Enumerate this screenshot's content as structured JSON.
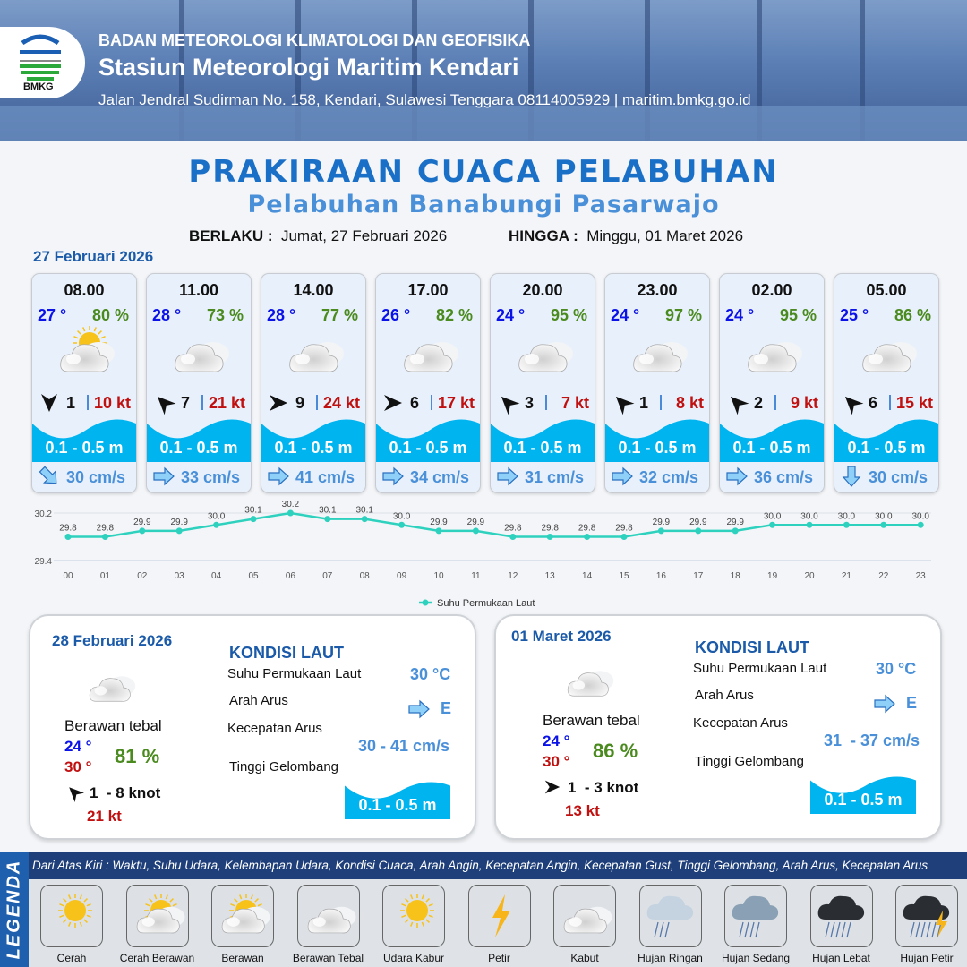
{
  "header": {
    "org": "BADAN METEOROLOGI KLIMATOLOGI DAN GEOFISIKA",
    "station": "Stasiun Meteorologi Maritim Kendari",
    "address": "Jalan Jendral Sudirman No. 158, Kendari, Sulawesi Tenggara  08114005929 | maritim.bmkg.go.id",
    "logo_text": "BMKG"
  },
  "title": "PRAKIRAAN CUACA PELABUHAN",
  "subtitle": "Pelabuhan Banabungi Pasarwajo",
  "validity": {
    "from_label": "BERLAKU :",
    "from": "Jumat, 27 Februari 2026",
    "to_label": "HINGGA :",
    "to": "Minggu, 01 Maret 2026"
  },
  "day1": {
    "date": "27 Februari 2026",
    "cards": [
      {
        "time": "08.00",
        "temp": "27 °",
        "hum": "80 %",
        "weather": "cerah-berawan",
        "wind_dir_deg": 180,
        "wind": "1",
        "gust": "10 kt",
        "wave": "0.1 - 0.5 m",
        "current_dir_deg": 135,
        "current": "30 cm/s"
      },
      {
        "time": "11.00",
        "temp": "28 °",
        "hum": "73 %",
        "weather": "berawan-tebal",
        "wind_dir_deg": 315,
        "wind": "7",
        "gust": "21 kt",
        "wave": "0.1 - 0.5 m",
        "current_dir_deg": 90,
        "current": "33 cm/s"
      },
      {
        "time": "14.00",
        "temp": "28 °",
        "hum": "77 %",
        "weather": "berawan-tebal",
        "wind_dir_deg": 90,
        "wind": "9",
        "gust": "24 kt",
        "wave": "0.1 - 0.5 m",
        "current_dir_deg": 90,
        "current": "41 cm/s"
      },
      {
        "time": "17.00",
        "temp": "26 °",
        "hum": "82 %",
        "weather": "berawan-tebal",
        "wind_dir_deg": 90,
        "wind": "6",
        "gust": "17 kt",
        "wave": "0.1 - 0.5 m",
        "current_dir_deg": 90,
        "current": "34 cm/s"
      },
      {
        "time": "20.00",
        "temp": "24 °",
        "hum": "95 %",
        "weather": "berawan-tebal",
        "wind_dir_deg": 315,
        "wind": "3",
        "gust": "7 kt",
        "wave": "0.1 - 0.5 m",
        "current_dir_deg": 90,
        "current": "31 cm/s"
      },
      {
        "time": "23.00",
        "temp": "24 °",
        "hum": "97 %",
        "weather": "berawan-tebal",
        "wind_dir_deg": 315,
        "wind": "1",
        "gust": "8 kt",
        "wave": "0.1 - 0.5 m",
        "current_dir_deg": 90,
        "current": "32 cm/s"
      },
      {
        "time": "02.00",
        "temp": "24 °",
        "hum": "95 %",
        "weather": "berawan-tebal",
        "wind_dir_deg": 315,
        "wind": "2",
        "gust": "9 kt",
        "wave": "0.1 - 0.5 m",
        "current_dir_deg": 90,
        "current": "36 cm/s"
      },
      {
        "time": "05.00",
        "temp": "25 °",
        "hum": "86 %",
        "weather": "berawan-tebal",
        "wind_dir_deg": 315,
        "wind": "6",
        "gust": "15 kt",
        "wave": "0.1 - 0.5 m",
        "current_dir_deg": 180,
        "current": "30 cm/s"
      }
    ]
  },
  "chart_data": {
    "type": "line",
    "x": [
      "00",
      "01",
      "02",
      "03",
      "04",
      "05",
      "06",
      "07",
      "08",
      "09",
      "10",
      "11",
      "12",
      "13",
      "14",
      "15",
      "16",
      "17",
      "18",
      "19",
      "20",
      "21",
      "22",
      "23"
    ],
    "series": [
      {
        "name": "Suhu Permukaan Laut",
        "color": "#2ed1be",
        "values": [
          29.8,
          29.8,
          29.9,
          29.9,
          30.0,
          30.1,
          30.2,
          30.1,
          30.1,
          30.0,
          29.9,
          29.9,
          29.8,
          29.8,
          29.8,
          29.8,
          29.9,
          29.9,
          29.9,
          30.0,
          30.0,
          30.0,
          30.0,
          30.0
        ]
      }
    ],
    "yticks": [
      "30.2",
      "29.4"
    ],
    "ylim": [
      29.4,
      30.2
    ],
    "legend": "bottom"
  },
  "panels": [
    {
      "date": "28 Februari 2026",
      "weather": "Berawan tebal",
      "tmin": "24 °",
      "tmax": "30 °",
      "hum": "81 %",
      "wind_dir_deg": 315,
      "wind": "1  - 8 knot",
      "gust": "21 kt",
      "kondisi": "KONDISI LAUT",
      "sst_label": "Suhu Permukaan Laut",
      "sst": "30 °C",
      "dir_label": "Arah Arus",
      "dir": "E",
      "spd_label": "Kecepatan Arus",
      "spd": "30 - 41 cm/s",
      "wave_label": "Tinggi Gelombang",
      "wave": "0.1 - 0.5 m"
    },
    {
      "date": "01 Maret 2026",
      "weather": "Berawan tebal",
      "tmin": "24 °",
      "tmax": "30 °",
      "hum": "86 %",
      "wind_dir_deg": 90,
      "wind": "1  - 3 knot",
      "gust": "13 kt",
      "kondisi": "KONDISI LAUT",
      "sst_label": "Suhu Permukaan Laut",
      "sst": "30 °C",
      "dir_label": "Arah Arus",
      "dir": "E",
      "spd_label": "Kecepatan Arus",
      "spd": "31  - 37 cm/s",
      "wave_label": "Tinggi Gelombang",
      "wave": "0.1 - 0.5 m"
    }
  ],
  "legend": {
    "side": "LEGENDA",
    "description": "Dari Atas Kiri : Waktu, Suhu Udara, Kelembapan Udara, Kondisi Cuaca, Arah Angin, Kecepatan Angin, Kecepatan Gust, Tinggi Gelombang, Arah Arus, Kecepatan Arus",
    "items": [
      "Cerah",
      "Cerah Berawan",
      "Berawan",
      "Berawan Tebal",
      "Udara Kabur",
      "Petir",
      "Kabut",
      "Hujan Ringan",
      "Hujan Sedang",
      "Hujan Lebat",
      "Hujan Petir"
    ]
  },
  "colors": {
    "temp": "#0a12e8",
    "hum": "#4a8a1e",
    "gust": "#c01010",
    "wave": "#00b4f0",
    "current": "#4a90d9",
    "title": "#1a6fc7"
  }
}
